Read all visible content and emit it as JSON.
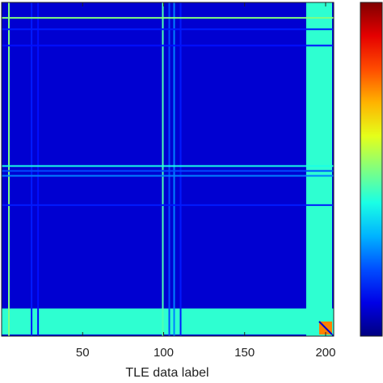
{
  "chart_data": {
    "type": "heatmap",
    "xlabel": "TLE data label",
    "xlim": [
      0,
      205
    ],
    "xticks": [
      50,
      100,
      150,
      200
    ],
    "clim": [
      0,
      1
    ],
    "background": 0.08,
    "columns": [
      {
        "index": 4,
        "value": 0.5
      },
      {
        "index": 18,
        "value": 0.15
      },
      {
        "index": 22,
        "value": 0.14
      },
      {
        "index": 99,
        "value": 0.45
      },
      {
        "index": 103,
        "value": 0.2
      },
      {
        "index": 106,
        "value": 0.25
      },
      {
        "index": 110,
        "value": 0.15
      }
    ],
    "rows": [
      {
        "index": 9,
        "value": 0.5
      },
      {
        "index": 16,
        "value": 0.15
      },
      {
        "index": 26,
        "value": 0.14
      },
      {
        "index": 100,
        "value": 0.4
      },
      {
        "index": 103,
        "value": 0.2
      },
      {
        "index": 106,
        "value": 0.25
      },
      {
        "index": 124,
        "value": 0.15
      }
    ],
    "edge_band": {
      "start": 188,
      "end": 204,
      "value": 0.42
    },
    "corner": 0.75
  }
}
